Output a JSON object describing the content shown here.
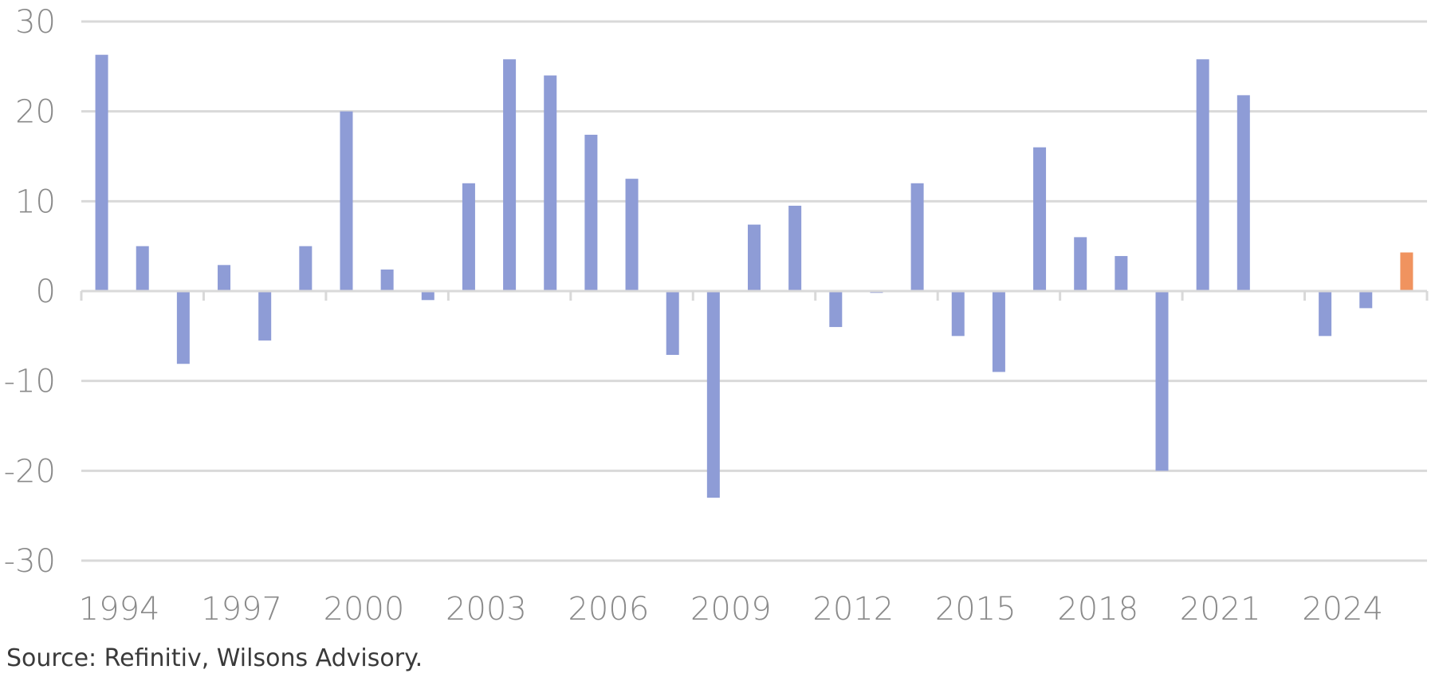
{
  "chart_data": {
    "type": "bar",
    "title": "",
    "xlabel": "",
    "ylabel": "",
    "x": [
      1994,
      1995,
      1996,
      1997,
      1998,
      1999,
      2000,
      2001,
      2002,
      2003,
      2004,
      2005,
      2006,
      2007,
      2008,
      2009,
      2010,
      2011,
      2012,
      2013,
      2014,
      2015,
      2016,
      2017,
      2018,
      2019,
      2020,
      2021,
      2022,
      2023,
      2024,
      2025,
      2026
    ],
    "values": [
      26.3,
      5.0,
      -8.1,
      2.9,
      -5.5,
      5.0,
      20.0,
      2.4,
      -1.0,
      12.0,
      25.8,
      24.0,
      17.4,
      12.5,
      -7.1,
      -23.0,
      7.4,
      9.5,
      -4.0,
      -0.2,
      12.0,
      -5.0,
      -9.0,
      16.0,
      6.0,
      3.9,
      -20.0,
      25.8,
      21.8,
      0.1,
      -5.0,
      -1.9,
      4.3
    ],
    "colors": {
      "bar": "#8e9cd6",
      "highlight": "#f0935f",
      "grid": "#d9d9d9",
      "axis": "#d9d9d9"
    },
    "highlight_index": 32,
    "ylim": [
      -30,
      30
    ],
    "yticks": [
      30,
      20,
      10,
      0,
      -10,
      -20,
      -30
    ],
    "ytick_labels": [
      "30",
      "20",
      "10",
      "0",
      "-10",
      "-20",
      "-30"
    ],
    "xtick_labels": [
      "1994",
      "1997",
      "2000",
      "2003",
      "2006",
      "2009",
      "2012",
      "2015",
      "2018",
      "2021",
      "2024"
    ],
    "xtick_years": [
      1994,
      1997,
      2000,
      2003,
      2006,
      2009,
      2012,
      2015,
      2018,
      2021,
      2024
    ],
    "grid": true,
    "legend": "none"
  },
  "source_text": "Source: Refinitiv, Wilsons Advisory."
}
